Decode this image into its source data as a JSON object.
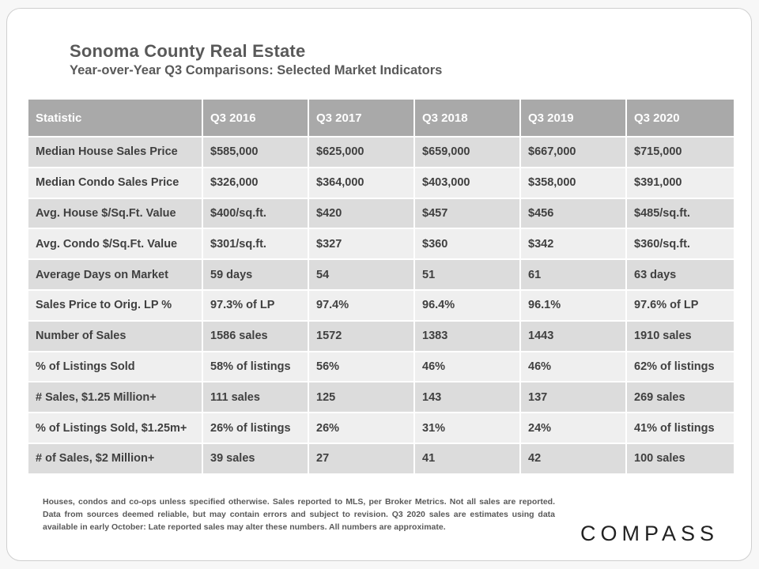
{
  "header": {
    "title": "Sonoma County Real Estate",
    "subtitle": "Year-over-Year  Q3 Comparisons:  Selected Market Indicators"
  },
  "table": {
    "columns": [
      "Statistic",
      "Q3 2016",
      "Q3 2017",
      "Q3 2018",
      "Q3 2019",
      "Q3 2020"
    ],
    "rows": [
      [
        "Median House Sales Price",
        "$585,000",
        "$625,000",
        "$659,000",
        "$667,000",
        "$715,000"
      ],
      [
        "Median Condo Sales Price",
        "$326,000",
        "$364,000",
        "$403,000",
        "$358,000",
        "$391,000"
      ],
      [
        "Avg. House $/Sq.Ft. Value",
        "$400/sq.ft.",
        "$420",
        "$457",
        "$456",
        "$485/sq.ft."
      ],
      [
        "Avg. Condo $/Sq.Ft. Value",
        "$301/sq.ft.",
        "$327",
        "$360",
        "$342",
        "$360/sq.ft."
      ],
      [
        "Average Days on Market",
        "59 days",
        "54",
        "51",
        "61",
        "63 days"
      ],
      [
        "Sales Price to Orig. LP %",
        "97.3% of LP",
        "97.4%",
        "96.4%",
        "96.1%",
        "97.6% of LP"
      ],
      [
        "Number of Sales",
        "1586 sales",
        "1572",
        "1383",
        "1443",
        "1910 sales"
      ],
      [
        "% of Listings Sold",
        "58% of listings",
        "56%",
        "46%",
        "46%",
        "62% of listings"
      ],
      [
        "# Sales, $1.25 Million+",
        "111 sales",
        "125",
        "143",
        "137",
        "269 sales"
      ],
      [
        "% of Listings Sold, $1.25m+",
        "26% of listings",
        "26%",
        "31%",
        "24%",
        "41% of listings"
      ],
      [
        "# of Sales, $2 Million+",
        "39 sales",
        "27",
        "41",
        "42",
        "100 sales"
      ]
    ]
  },
  "footnote": "Houses, condos and co-ops unless specified otherwise. Sales reported to MLS, per Broker Metrics. Not all sales are reported. Data from sources deemed reliable, but may contain errors and subject to revision. Q3 2020 sales are estimates using data available in early October: Late reported sales may alter these numbers. All numbers are approximate.",
  "logo": "COMPASS",
  "colors": {
    "header_fill": "#a9a9a9",
    "row_dark": "#dcdcdc",
    "row_light": "#efefef",
    "text": "#404040"
  }
}
